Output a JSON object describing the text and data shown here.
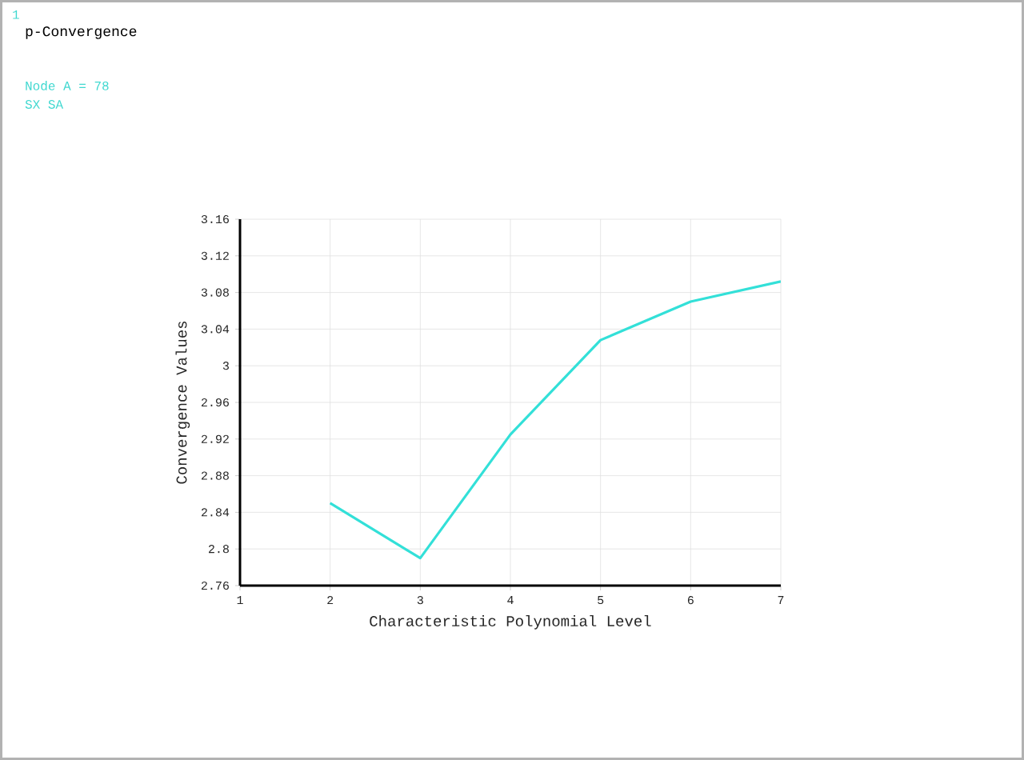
{
  "chart_data": {
    "type": "line",
    "title": "p-Convergence",
    "xlabel": "Characteristic Polynomial Level",
    "ylabel": "Convergence Values",
    "annotations": [
      "1",
      "Node A =    78",
      "SX SA"
    ],
    "x": [
      2,
      3,
      4,
      5,
      6,
      7
    ],
    "values": [
      2.85,
      2.79,
      2.925,
      3.028,
      3.07,
      3.092
    ],
    "color": "#33e0d8",
    "xlim": [
      1,
      7
    ],
    "xticks": [
      1,
      2,
      3,
      4,
      5,
      6,
      7
    ],
    "ylim": [
      2.76,
      3.16
    ],
    "yticks": [
      2.76,
      2.8,
      2.84,
      2.88,
      2.92,
      2.96,
      3,
      3.04,
      3.08,
      3.12,
      3.16
    ],
    "grid": true,
    "marker": "none",
    "line_style": "solid"
  }
}
